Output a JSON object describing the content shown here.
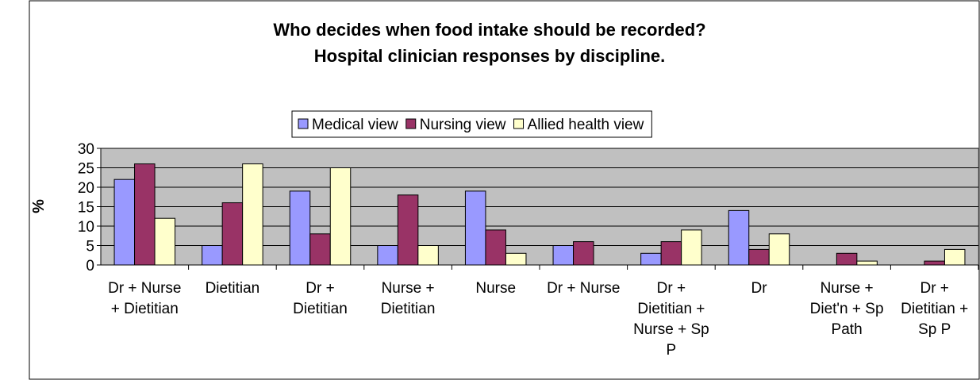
{
  "chart_data": {
    "type": "bar",
    "title": [
      "Who decides when food intake should be recorded?",
      "Hospital clinician responses by discipline."
    ],
    "y_label": "%",
    "categories": [
      "Dr + Nurse + Dietitian",
      "Dietitian",
      "Dr + Dietitian",
      "Nurse + Dietitian",
      "Nurse",
      "Dr + Nurse",
      "Dr + Dietitian + Nurse + Sp P",
      "Dr",
      "Nurse + Diet'n + Sp Path",
      "Dr + Dietitian + Sp P"
    ],
    "series": [
      {
        "name": "Medical view",
        "color": "#9999ff",
        "values": [
          22,
          5,
          19,
          5,
          19,
          5,
          3,
          14,
          0,
          0
        ]
      },
      {
        "name": "Nursing view",
        "color": "#993366",
        "values": [
          26,
          16,
          8,
          18,
          9,
          6,
          6,
          4,
          3,
          1
        ]
      },
      {
        "name": "Allied health view",
        "color": "#ffffcc",
        "values": [
          12,
          26,
          25,
          5,
          3,
          0,
          9,
          8,
          1,
          4
        ]
      }
    ],
    "ylim": [
      0,
      30
    ],
    "yticks": [
      0,
      5,
      10,
      15,
      20,
      25,
      30
    ],
    "grid": true,
    "legend": "top"
  }
}
